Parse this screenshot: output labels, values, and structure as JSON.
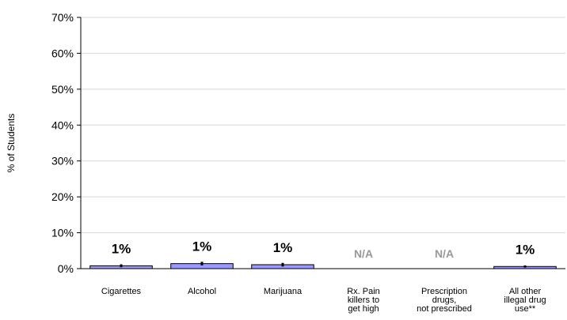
{
  "chart_data": {
    "type": "bar",
    "ylabel": "% of Students",
    "ylim": [
      0,
      70
    ],
    "yticks": [
      0,
      10,
      20,
      30,
      40,
      50,
      60,
      70
    ],
    "ytick_labels": [
      "0%",
      "10%",
      "20%",
      "30%",
      "40%",
      "50%",
      "60%",
      "70%"
    ],
    "grid": true,
    "categories": [
      [
        "Cigarettes"
      ],
      [
        "Alcohol"
      ],
      [
        "Marijuana"
      ],
      [
        "Rx. Pain",
        "killers to",
        "get high"
      ],
      [
        "Prescription",
        "drugs,",
        "not prescribed"
      ],
      [
        "All other",
        "illegal drug",
        "use**"
      ]
    ],
    "values": [
      0.8,
      1.4,
      1.1,
      null,
      null,
      0.6
    ],
    "error_bars": [
      0.4,
      0.5,
      0.5,
      null,
      null,
      0.3
    ],
    "data_labels": [
      "1%",
      "1%",
      "1%",
      "N/A",
      "N/A",
      "1%"
    ],
    "bar_color": "#9999ff",
    "na_label_color": "#999999"
  }
}
